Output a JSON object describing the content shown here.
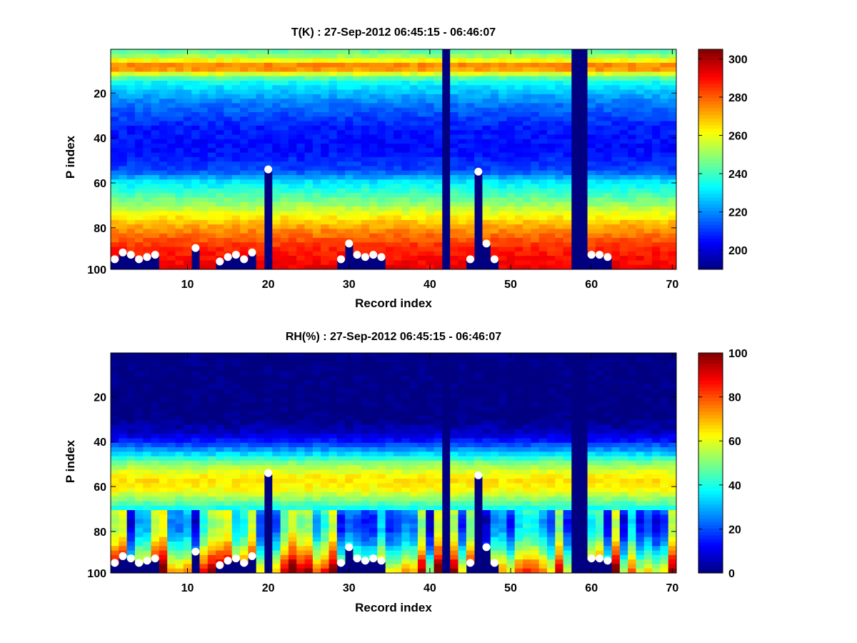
{
  "figure": {
    "background": "#ffffff",
    "colormap": "jet"
  },
  "chart_data": [
    {
      "type": "heatmap",
      "title": "T(K) : 27-Sep-2012 06:45:15 - 06:46:07",
      "xlabel": "Record index",
      "ylabel": "P index",
      "xlim": [
        0.5,
        70.5
      ],
      "ylim": [
        0.5,
        98.5
      ],
      "y_reversed": true,
      "xticks": [
        10,
        20,
        30,
        40,
        50,
        60,
        70
      ],
      "yticks": [
        20,
        40,
        60,
        80,
        100
      ],
      "colorbar": {
        "min": 190,
        "max": 305,
        "ticks": [
          200,
          220,
          240,
          260,
          280,
          300
        ]
      },
      "profile": {
        "p_index": [
          1,
          5,
          8,
          10,
          15,
          25,
          35,
          45,
          55,
          60,
          65,
          70,
          75,
          80,
          85,
          90,
          95,
          98
        ],
        "value": [
          240,
          255,
          275,
          273,
          235,
          218,
          208,
          205,
          212,
          230,
          240,
          250,
          262,
          272,
          280,
          287,
          290,
          292
        ]
      },
      "missing_records": [
        42,
        58,
        59
      ],
      "surface_points": {
        "records": [
          1,
          2,
          3,
          4,
          5,
          6,
          11,
          14,
          15,
          16,
          17,
          18,
          20,
          29,
          30,
          31,
          32,
          33,
          34,
          45,
          46,
          47,
          48,
          60,
          61,
          62
        ],
        "p_index": [
          94,
          91,
          92,
          94,
          93,
          92,
          89,
          95,
          93,
          92,
          94,
          91,
          54,
          94,
          87,
          92,
          93,
          92,
          93,
          94,
          55,
          87,
          94,
          92,
          92,
          93
        ]
      }
    },
    {
      "type": "heatmap",
      "title": "RH(%) : 27-Sep-2012 06:45:15 - 06:46:07",
      "xlabel": "Record index",
      "ylabel": "P index",
      "xlim": [
        0.5,
        70.5
      ],
      "ylim": [
        0.5,
        98.5
      ],
      "y_reversed": true,
      "xticks": [
        10,
        20,
        30,
        40,
        50,
        60,
        70
      ],
      "yticks": [
        20,
        40,
        60,
        80,
        100
      ],
      "colorbar": {
        "min": 0,
        "max": 100,
        "ticks": [
          0,
          20,
          40,
          60,
          80,
          100
        ]
      },
      "profile": {
        "p_index": [
          1,
          30,
          36,
          40,
          45,
          50,
          55,
          58,
          62,
          66,
          70,
          75,
          80,
          85,
          90,
          95,
          98
        ],
        "value": [
          0,
          0,
          6,
          14,
          30,
          50,
          62,
          65,
          62,
          52,
          40,
          32,
          34,
          42,
          55,
          70,
          78
        ]
      },
      "missing_records": [
        42,
        58,
        59
      ],
      "surface_points": {
        "records": [
          1,
          2,
          3,
          4,
          5,
          6,
          11,
          14,
          15,
          16,
          17,
          18,
          20,
          29,
          30,
          31,
          32,
          33,
          34,
          45,
          46,
          47,
          48,
          60,
          61,
          62
        ],
        "p_index": [
          94,
          91,
          92,
          94,
          93,
          92,
          89,
          95,
          93,
          92,
          94,
          91,
          54,
          94,
          87,
          92,
          93,
          92,
          93,
          94,
          55,
          87,
          94,
          92,
          92,
          93
        ]
      }
    }
  ]
}
